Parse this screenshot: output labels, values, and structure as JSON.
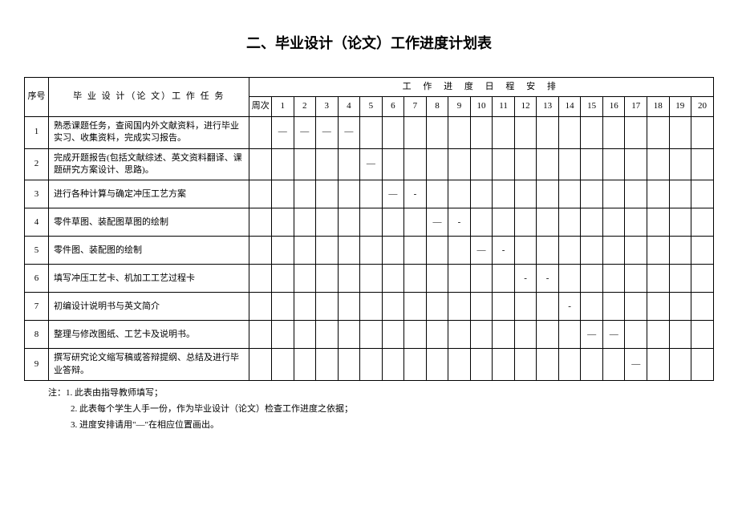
{
  "title": "二、毕业设计（论文）工作进度计划表",
  "headers": {
    "seq": "序号",
    "task": "毕 业 设 计（论 文）工 作 任 务",
    "schedule": "工 作 进 度 日 程 安 排",
    "weeklabel": "周次"
  },
  "weeks": [
    "1",
    "2",
    "3",
    "4",
    "5",
    "6",
    "7",
    "8",
    "9",
    "10",
    "11",
    "12",
    "13",
    "14",
    "15",
    "16",
    "17",
    "18",
    "19",
    "20"
  ],
  "rows": [
    {
      "seq": "1",
      "task": "熟悉课题任务，查阅国内外文献资料，进行毕业实习、收集资料，完成实习报告。",
      "marks": [
        "—",
        "—",
        "—",
        "—",
        "",
        "",
        "",
        "",
        "",
        "",
        "",
        "",
        "",
        "",
        "",
        "",
        "",
        "",
        "",
        ""
      ]
    },
    {
      "seq": "2",
      "task": "完成开题报告(包括文献综述、英文资料翻译、课题研究方案设计、思路)。",
      "marks": [
        "",
        "",
        "",
        "",
        "—",
        "",
        "",
        "",
        "",
        "",
        "",
        "",
        "",
        "",
        "",
        "",
        "",
        "",
        "",
        ""
      ]
    },
    {
      "seq": "3",
      "task": "进行各种计算与确定冲压工艺方案",
      "marks": [
        "",
        "",
        "",
        "",
        "",
        "—",
        "-",
        "",
        "",
        "",
        "",
        "",
        "",
        "",
        "",
        "",
        "",
        "",
        "",
        ""
      ]
    },
    {
      "seq": "4",
      "task": "零件草图、装配图草图的绘制",
      "marks": [
        "",
        "",
        "",
        "",
        "",
        "",
        "",
        "—",
        "-",
        "",
        "",
        "",
        "",
        "",
        "",
        "",
        "",
        "",
        "",
        ""
      ]
    },
    {
      "seq": "5",
      "task": "零件图、装配图的绘制",
      "marks": [
        "",
        "",
        "",
        "",
        "",
        "",
        "",
        "",
        "",
        "—",
        "-",
        "",
        "",
        "",
        "",
        "",
        "",
        "",
        "",
        ""
      ]
    },
    {
      "seq": "6",
      "task": "填写冲压工艺卡、机加工工艺过程卡",
      "marks": [
        "",
        "",
        "",
        "",
        "",
        "",
        "",
        "",
        "",
        "",
        "",
        "-",
        "-",
        "",
        "",
        "",
        "",
        "",
        "",
        ""
      ]
    },
    {
      "seq": "7",
      "task": "初编设计说明书与英文简介",
      "marks": [
        "",
        "",
        "",
        "",
        "",
        "",
        "",
        "",
        "",
        "",
        "",
        "",
        "",
        "-",
        "",
        "",
        "",
        "",
        "",
        ""
      ]
    },
    {
      "seq": "8",
      "task": "整理与修改图纸、工艺卡及说明书。",
      "marks": [
        "",
        "",
        "",
        "",
        "",
        "",
        "",
        "",
        "",
        "",
        "",
        "",
        "",
        "",
        "—",
        "—",
        "",
        "",
        "",
        ""
      ]
    },
    {
      "seq": "9",
      "task": "撰写研究论文缩写稿或答辩提纲、总结及进行毕业答辩。",
      "marks": [
        "",
        "",
        "",
        "",
        "",
        "",
        "",
        "",
        "",
        "",
        "",
        "",
        "",
        "",
        "",
        "",
        "—",
        "",
        "",
        ""
      ]
    }
  ],
  "notes": [
    "注：1. 此表由指导教师填写；",
    "2. 此表每个学生人手一份，作为毕业设计（论文）检查工作进度之依据；",
    "3. 进度安排请用\"—\"在相应位置画出。"
  ]
}
